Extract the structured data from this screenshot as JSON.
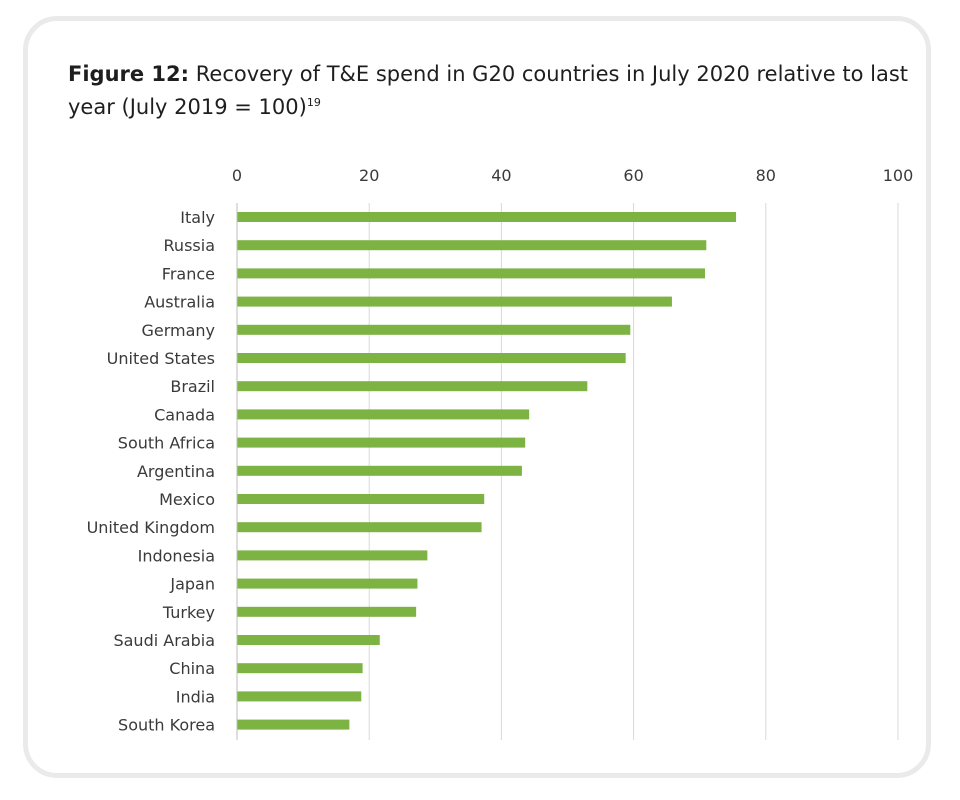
{
  "figure": {
    "label": "Figure 12:",
    "title": "Recovery of T&E spend in G20 countries in July 2020 relative to last year (July 2019 = 100)",
    "footnote": "19"
  },
  "chart_data": {
    "type": "bar",
    "orientation": "horizontal",
    "bar_color": "#7cb342",
    "xlim": [
      0,
      100
    ],
    "xticks": [
      0,
      20,
      40,
      60,
      80,
      100
    ],
    "axis_position": "top",
    "grid": true,
    "categories": [
      "Italy",
      "Russia",
      "France",
      "Australia",
      "Germany",
      "United States",
      "Brazil",
      "Canada",
      "South Africa",
      "Argentina",
      "Mexico",
      "United Kingdom",
      "Indonesia",
      "Japan",
      "Turkey",
      "Saudi Arabia",
      "China",
      "India",
      "South Korea"
    ],
    "values": [
      75.5,
      71.0,
      70.8,
      65.8,
      59.5,
      58.8,
      53.0,
      44.2,
      43.6,
      43.1,
      37.4,
      37.0,
      28.8,
      27.3,
      27.1,
      21.6,
      19.0,
      18.8,
      17.0
    ]
  }
}
